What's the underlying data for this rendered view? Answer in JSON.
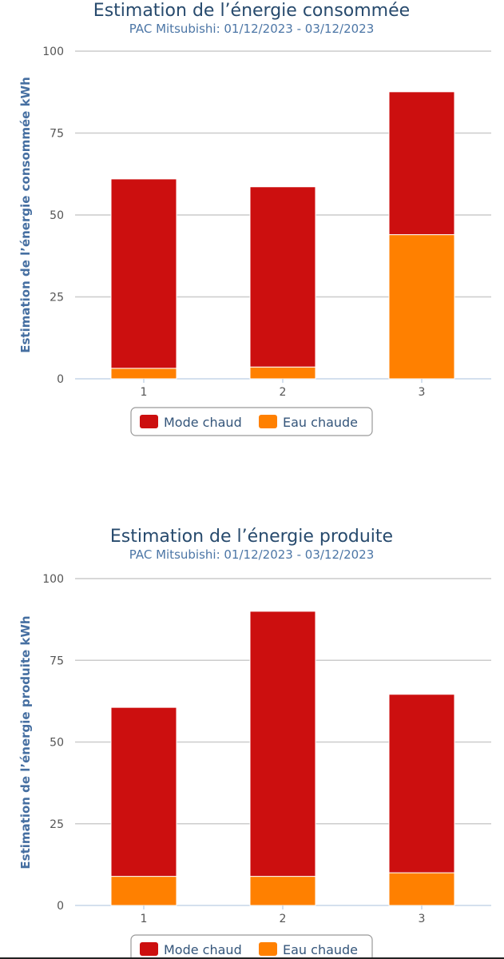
{
  "chart_data": [
    {
      "type": "bar",
      "stacked": true,
      "title": "Estimation de l’énergie consommée",
      "subtitle": "PAC Mitsubishi: 01/12/2023 - 03/12/2023",
      "xlabel": "",
      "ylabel": "Estimation de l’énergie consommée kWh",
      "categories": [
        "1",
        "2",
        "3"
      ],
      "ylim": [
        0,
        100
      ],
      "yticks": [
        0,
        25,
        50,
        75,
        100
      ],
      "grid": true,
      "legend_position": "bottom-center",
      "series": [
        {
          "name": "Eau chaude",
          "color": "#ff8000",
          "values": [
            3.2,
            3.6,
            44.0
          ]
        },
        {
          "name": "Mode chaud",
          "color": "#cc0f0f",
          "values": [
            57.8,
            55.0,
            43.6
          ]
        }
      ],
      "legend": [
        "Mode chaud",
        "Eau chaude"
      ]
    },
    {
      "type": "bar",
      "stacked": true,
      "title": "Estimation de l’énergie produite",
      "subtitle": "PAC Mitsubishi: 01/12/2023 - 03/12/2023",
      "xlabel": "",
      "ylabel": "Estimation de l’énergie produite kWh",
      "categories": [
        "1",
        "2",
        "3"
      ],
      "ylim": [
        0,
        100
      ],
      "yticks": [
        0,
        25,
        50,
        75,
        100
      ],
      "grid": true,
      "legend_position": "bottom-center",
      "series": [
        {
          "name": "Eau chaude",
          "color": "#ff8000",
          "values": [
            8.9,
            8.9,
            10.0
          ]
        },
        {
          "name": "Mode chaud",
          "color": "#cc0f0f",
          "values": [
            51.7,
            81.1,
            54.6
          ]
        }
      ],
      "legend": [
        "Mode chaud",
        "Eau chaude"
      ]
    }
  ]
}
